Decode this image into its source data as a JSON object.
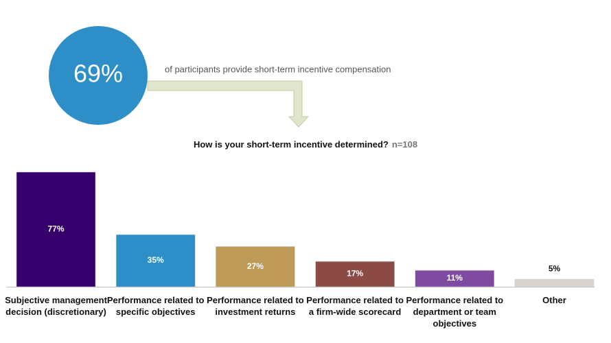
{
  "highlight": {
    "label": "69%",
    "text": "of participants provide short-term incentive compensation"
  },
  "chart_data": {
    "type": "bar",
    "title": "How is your short-term incentive determined?",
    "subtitle": "n=108",
    "categories": [
      "Subjective management decision (discretionary)",
      "Performance related to specific objectives",
      "Performance related to investment returns",
      "Performance related to a firm-wide scorecard",
      "Performance related to department or team objectives",
      "Other"
    ],
    "values": [
      77,
      35,
      27,
      17,
      11,
      5
    ],
    "value_labels": [
      "77%",
      "35%",
      "27%",
      "17%",
      "11%",
      "5%"
    ],
    "colors": [
      "#35006b",
      "#2e8fc8",
      "#bf9b5a",
      "#8b4a44",
      "#7f4ba0",
      "#d9d4cf"
    ]
  }
}
